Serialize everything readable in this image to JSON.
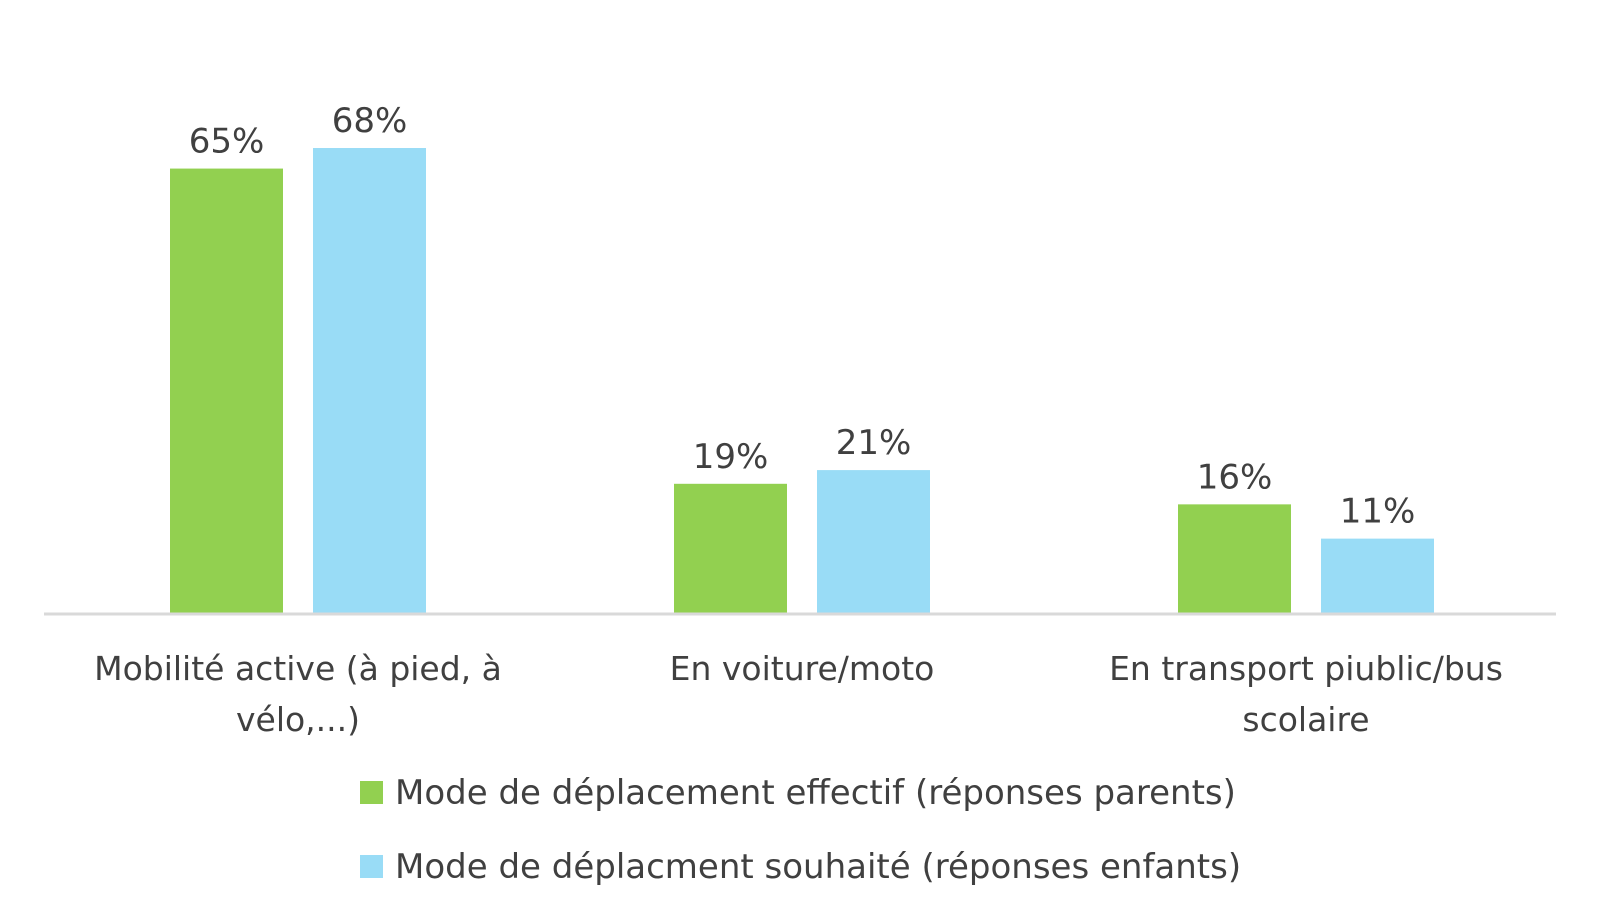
{
  "chart_data": {
    "type": "bar",
    "categories": [
      "Mobilité active (à pied, à vélo,...)",
      "En voiture/moto",
      "En transport piublic/bus scolaire"
    ],
    "category_lines": [
      [
        "Mobilité active (à pied, à",
        "vélo,...)"
      ],
      [
        "En voiture/moto"
      ],
      [
        "En transport piublic/bus",
        "scolaire"
      ]
    ],
    "series": [
      {
        "name": "Mode de déplacement effectif (réponses parents)",
        "values": [
          65,
          19,
          16
        ],
        "labels": [
          "65%",
          "19%",
          "16%"
        ],
        "color": "#92d050"
      },
      {
        "name": "Mode de déplacment souhaité (réponses enfants)",
        "values": [
          68,
          21,
          11
        ],
        "labels": [
          "68%",
          "21%",
          "11%"
        ],
        "color": "#99dcf6"
      }
    ],
    "ylim": [
      0,
      70
    ],
    "grid": false,
    "legend": "bottom",
    "axis_color": "#d9d9d9"
  }
}
